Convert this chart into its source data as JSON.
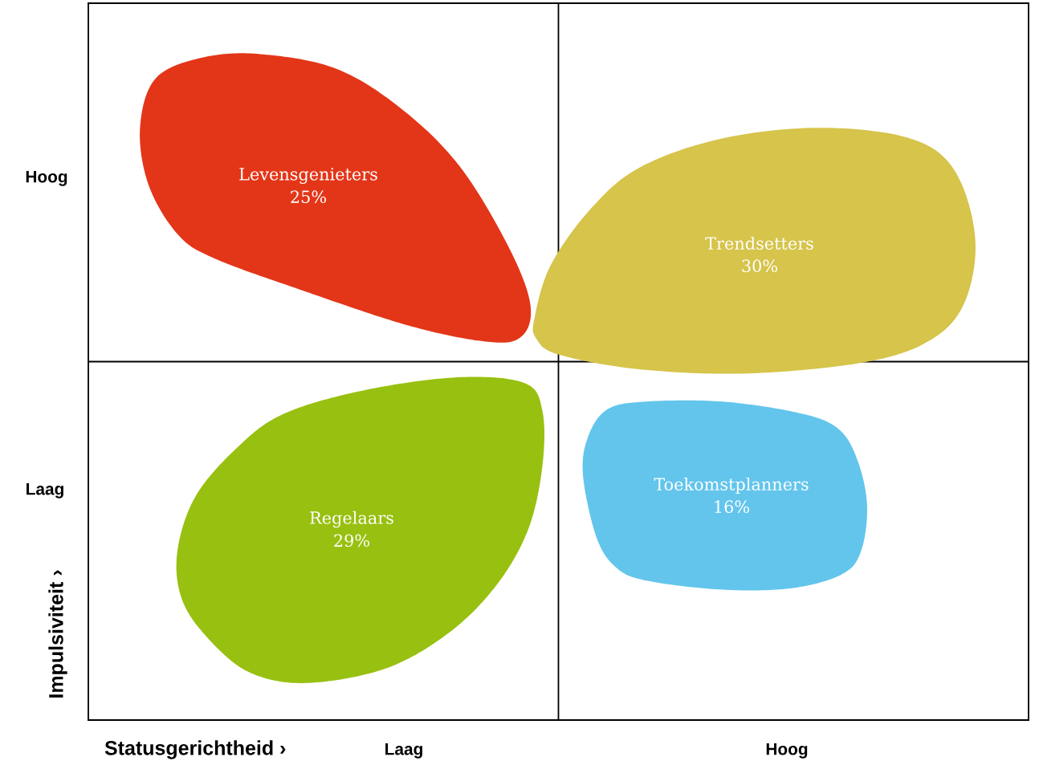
{
  "chart_data": {
    "type": "other",
    "xlabel": "Statusgerichtheid ›",
    "ylabel": "Impulsiviteit ›",
    "categories": [
      "Levensgenieters",
      "Trendsetters",
      "Regelaars",
      "Toekomstplanners"
    ],
    "values": [
      25,
      30,
      29,
      16
    ],
    "value_labels": [
      "25%",
      "30%",
      "29%",
      "16%"
    ],
    "colors": [
      "#e33618",
      "#d6c44b",
      "#98c010",
      "#63c5ec"
    ],
    "annotations": [
      "Hoog",
      "Laag",
      "Laag",
      "Hoog"
    ]
  }
}
